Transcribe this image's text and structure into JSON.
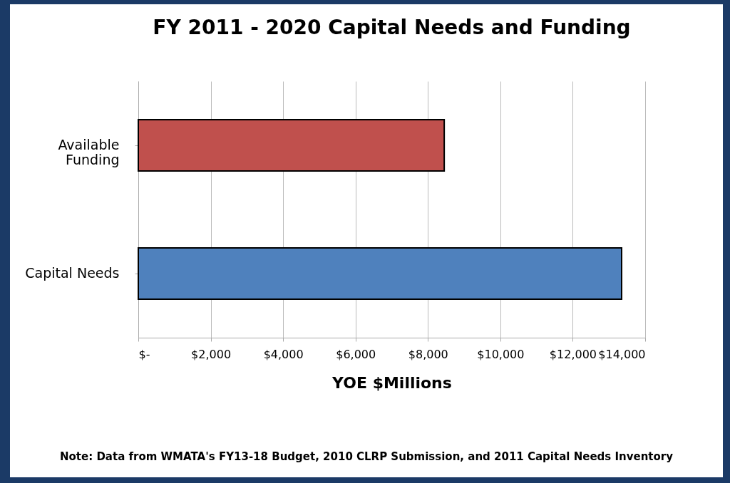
{
  "chart_data": {
    "type": "bar",
    "orientation": "horizontal",
    "title": "FY 2011 - 2020 Capital Needs and Funding",
    "xlabel": "YOE $Millions",
    "categories": [
      "Available Funding",
      "Capital Needs"
    ],
    "values": [
      8450,
      13350
    ],
    "colors": [
      "#c0504d",
      "#4f81bd"
    ],
    "xlim": [
      0,
      14000
    ],
    "xticks": [
      {
        "value": 0,
        "label": "$-"
      },
      {
        "value": 2000,
        "label": "$2,000"
      },
      {
        "value": 4000,
        "label": "$4,000"
      },
      {
        "value": 6000,
        "label": "$6,000"
      },
      {
        "value": 8000,
        "label": "$8,000"
      },
      {
        "value": 10000,
        "label": "$10,000"
      },
      {
        "value": 12000,
        "label": "$12,000"
      },
      {
        "value": 14000,
        "label": "$14,000"
      }
    ],
    "grid": "x",
    "legend": false,
    "annotations": [
      "Note: Data from WMATA's FY13-18 Budget, 2010 CLRP Submission, and 2011 Capital Needs Inventory"
    ]
  }
}
